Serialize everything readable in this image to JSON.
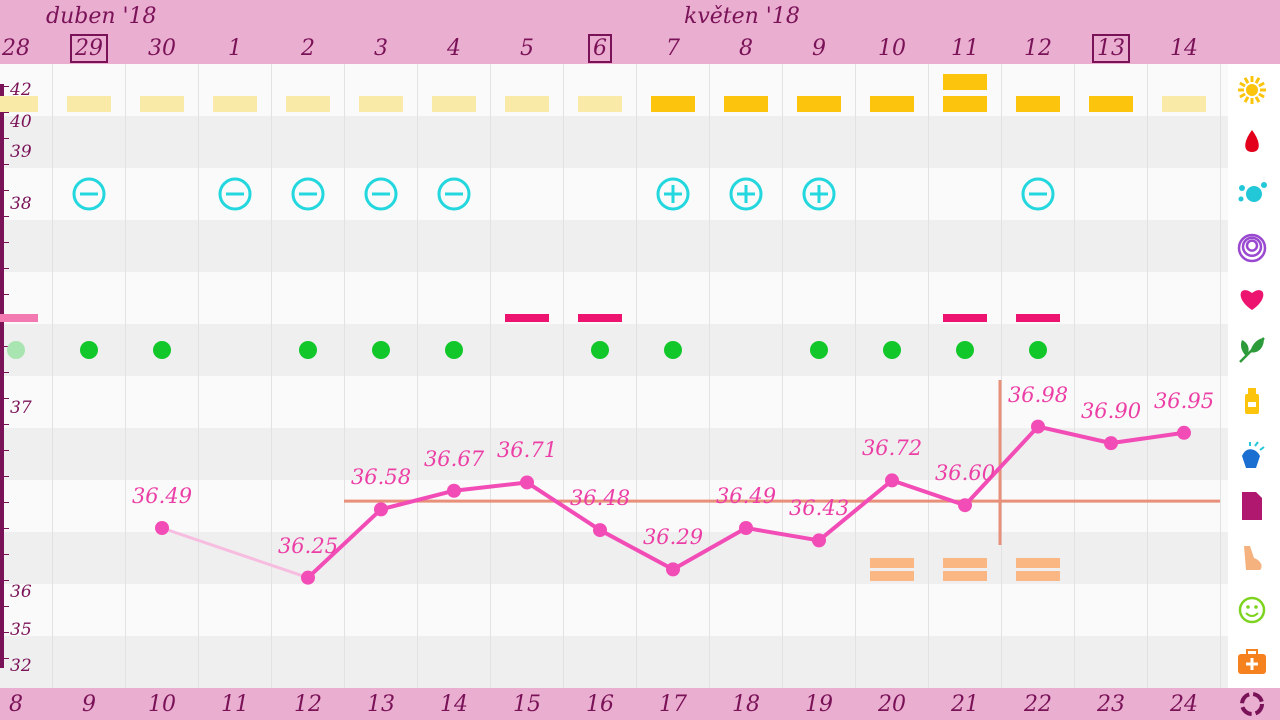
{
  "months": [
    {
      "label": "duben '18",
      "at_col": 0
    },
    {
      "label": "květen '18",
      "at_col": 9
    }
  ],
  "days": [
    {
      "day": "28",
      "cycle": "8",
      "boxed": false
    },
    {
      "day": "29",
      "cycle": "9",
      "boxed": true
    },
    {
      "day": "30",
      "cycle": "10",
      "boxed": false
    },
    {
      "day": "1",
      "cycle": "11",
      "boxed": false
    },
    {
      "day": "2",
      "cycle": "12",
      "boxed": false
    },
    {
      "day": "3",
      "cycle": "13",
      "boxed": false
    },
    {
      "day": "4",
      "cycle": "14",
      "boxed": false
    },
    {
      "day": "5",
      "cycle": "15",
      "boxed": false
    },
    {
      "day": "6",
      "cycle": "16",
      "boxed": true
    },
    {
      "day": "7",
      "cycle": "17",
      "boxed": false
    },
    {
      "day": "8",
      "cycle": "18",
      "boxed": false
    },
    {
      "day": "9",
      "cycle": "19",
      "boxed": false
    },
    {
      "day": "10",
      "cycle": "20",
      "boxed": false
    },
    {
      "day": "11",
      "cycle": "21",
      "boxed": false
    },
    {
      "day": "12",
      "cycle": "22",
      "boxed": false
    },
    {
      "day": "13",
      "cycle": "23",
      "boxed": true
    },
    {
      "day": "14",
      "cycle": "24",
      "boxed": false
    }
  ],
  "scale_labels": [
    "42",
    "40",
    "39",
    "38",
    "37",
    "36",
    "35",
    "32"
  ],
  "temperature": {
    "values": [
      null,
      null,
      36.49,
      null,
      36.25,
      36.58,
      36.67,
      36.71,
      36.48,
      36.29,
      36.49,
      36.43,
      36.72,
      36.6,
      36.98,
      36.9,
      36.95
    ],
    "labels": [
      "",
      "",
      "36.49",
      "",
      "36.25",
      "36.58",
      "36.67",
      "36.71",
      "36.48",
      "36.29",
      "36.49",
      "36.43",
      "36.72",
      "36.60",
      "36.98",
      "36.90",
      "36.95"
    ],
    "coverline": 36.62,
    "ovulation_marker_after_col": 13,
    "line_color": "#f24cb6",
    "coverline_color": "#e8907a"
  },
  "rows": {
    "sun": [
      "pale",
      "pale",
      "pale",
      "pale",
      "pale",
      "pale",
      "pale",
      "pale",
      "pale",
      "strong",
      "strong",
      "strong",
      "strong",
      "double",
      "strong",
      "strong",
      "pale"
    ],
    "tests": [
      "",
      "minus",
      "",
      "minus",
      "minus",
      "minus",
      "minus",
      "",
      "",
      "plus",
      "plus",
      "plus",
      "",
      "",
      "minus",
      "",
      ""
    ],
    "bleeding": [
      "partial",
      "",
      "",
      "",
      "",
      "",
      "",
      "bar",
      "bar",
      "",
      "",
      "",
      "",
      "bar",
      "bar",
      "",
      ""
    ],
    "dots": [
      "pale",
      "dot",
      "dot",
      "",
      "dot",
      "dot",
      "dot",
      "",
      "dot",
      "dot",
      "",
      "dot",
      "dot",
      "dot",
      "dot",
      "",
      ""
    ],
    "skin": [
      "",
      "",
      "",
      "",
      "",
      "",
      "",
      "",
      "",
      "",
      "",
      "",
      "double",
      "double",
      "double",
      "",
      ""
    ]
  },
  "sidebar_icons": [
    "sun-icon",
    "drop-icon",
    "splash-icon",
    "spiral-icon",
    "heart-icon",
    "leaf-icon",
    "bottle-icon",
    "hand-icon",
    "document-icon",
    "body-icon",
    "smiley-icon",
    "medkit-icon",
    "cycle-icon"
  ],
  "colors": {
    "header": "#eaaed0",
    "header_text": "#7a1258",
    "sun_pale": "#faeaa8",
    "sun_strong": "#fcc40c",
    "test": "#22d7dd",
    "bleeding": "#ec146e",
    "dot": "#12c72a",
    "skin": "#fab784"
  }
}
